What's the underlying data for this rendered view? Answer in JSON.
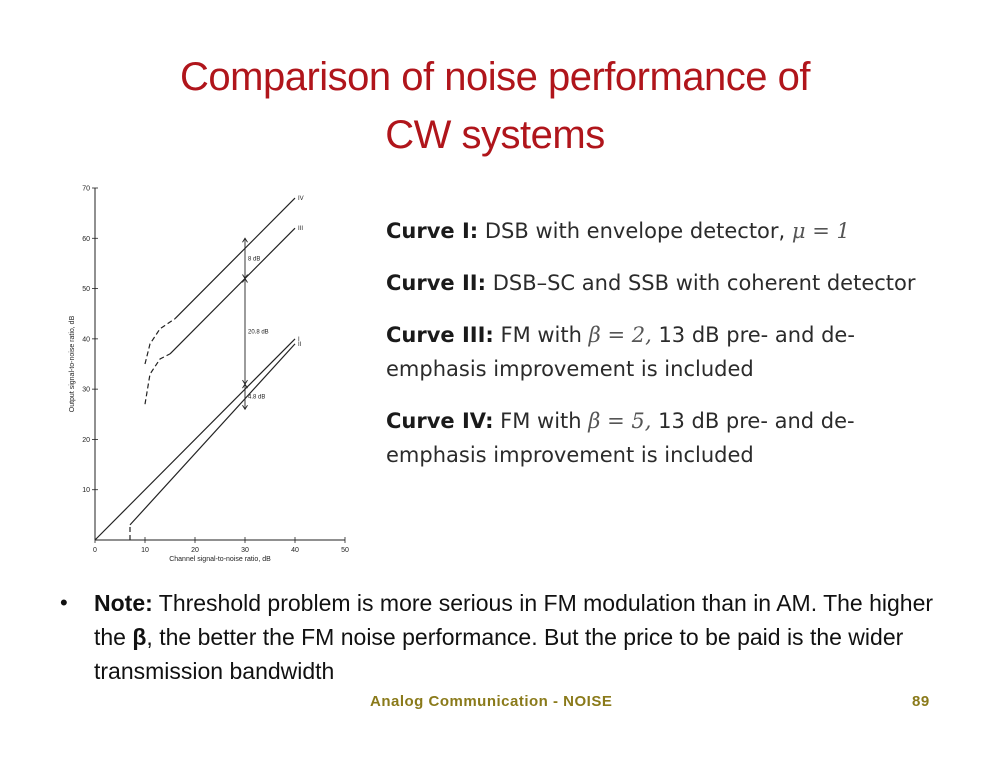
{
  "slide": {
    "title_line1": "Comparison of noise performance of",
    "title_line2": "CW systems",
    "title_color": "#b0151b"
  },
  "chart_data": {
    "type": "line",
    "xlabel": "Channel signal-to-noise ratio, dB",
    "ylabel": "Output signal-to-noise ratio, dB",
    "xlim": [
      0,
      50
    ],
    "ylim": [
      0,
      70
    ],
    "x_ticks": [
      "0",
      "10",
      "20",
      "30",
      "40",
      "50"
    ],
    "y_ticks": [
      "10",
      "20",
      "30",
      "40",
      "50",
      "60",
      "70"
    ],
    "series": [
      {
        "name": "I",
        "label": "I",
        "solid": [
          [
            0,
            0
          ],
          [
            40,
            40
          ]
        ],
        "dashed": []
      },
      {
        "name": "II",
        "label": "II",
        "solid": [
          [
            7,
            3
          ],
          [
            40,
            39
          ]
        ],
        "dashed": [
          [
            7,
            0
          ],
          [
            7,
            3
          ]
        ]
      },
      {
        "name": "III",
        "label": "III",
        "solid": [
          [
            15,
            37
          ],
          [
            40,
            62
          ]
        ],
        "dashed": [
          [
            10,
            27
          ],
          [
            11,
            33
          ],
          [
            13,
            36
          ],
          [
            15,
            37
          ]
        ]
      },
      {
        "name": "IV",
        "label": "IV",
        "solid": [
          [
            16,
            44
          ],
          [
            40,
            68
          ]
        ],
        "dashed": [
          [
            10,
            35
          ],
          [
            11,
            39
          ],
          [
            13,
            42
          ],
          [
            16,
            44
          ]
        ]
      }
    ],
    "annotations": [
      {
        "text": "8 dB",
        "x": 30,
        "y1": 60,
        "y2": 52
      },
      {
        "text": "20.8 dB",
        "x": 30,
        "y1": 52,
        "y2": 31
      },
      {
        "text": "4.8 dB",
        "x": 30,
        "y1": 31,
        "y2": 26
      }
    ]
  },
  "curves": [
    {
      "label": "Curve I:",
      "text": "DSB with envelope detector,",
      "math": "μ = 1",
      "rest": ""
    },
    {
      "label": "Curve II:",
      "text": "DSB–SC and SSB with coherent detector",
      "math": "",
      "rest": ""
    },
    {
      "label": "Curve III:",
      "text": "FM with",
      "math": "β = 2,",
      "rest": "13 dB pre- and de-emphasis improvement is included"
    },
    {
      "label": "Curve IV:",
      "text": "FM with",
      "math": "β = 5,",
      "rest": "13 dB pre- and de-emphasis improvement is included"
    }
  ],
  "note": {
    "bullet": "•",
    "label": "Note:",
    "text1": "Threshold problem is more serious in FM modulation than in AM. The higher the",
    "beta": "β",
    "text2": ", the better the FM noise performance. But the price to be paid is the wider transmission bandwidth"
  },
  "footer": {
    "center": "Analog Communication - NOISE",
    "page": "89"
  }
}
